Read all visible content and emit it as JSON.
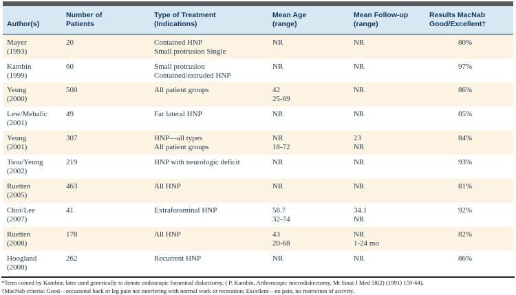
{
  "colors": {
    "top_bar": "#58595b",
    "header_bg": "#d8e8f2",
    "header_rule": "#7d9cb2",
    "stripe_bg": "#fdf3e2",
    "header_text": "#11365c",
    "body_text": "#263c50"
  },
  "table": {
    "headers": [
      "Author(s)",
      "Number of\nPatients",
      "Type of Treatment\n(Indications)",
      "Mean Age\n(range)",
      "Mean Follow-up\n(range)",
      "Results MacNab\nGood/Excellent†"
    ],
    "rows": [
      [
        "Mayer\n(1993)",
        "20",
        "Contained HNP\nSmall protrusion Single",
        "NR",
        "NR",
        "80%"
      ],
      [
        "Kambin\n(1999)",
        "60",
        "Small protrusion\nContained/extruded HNP",
        "NR",
        "NR",
        "97%"
      ],
      [
        "Yeung\n(2000)",
        "500",
        "All patient groups",
        "42\n25-69",
        "NR",
        "86%"
      ],
      [
        "Lew/Mehalic\n(2001)",
        "49",
        "Far lateral HNP",
        "NR",
        "NR",
        "85%"
      ],
      [
        "Yeung\n(2001)",
        "307",
        "HNP—all types\nAll patient groups",
        "NR\n18-72",
        "23\nNR",
        "84%"
      ],
      [
        "Tsou/Yeung\n(2002)",
        "219",
        "HNP with neurologic deficit",
        "NR",
        "NR",
        "93%"
      ],
      [
        "Ruetten\n(2005)",
        "463",
        "All HNP",
        "NR",
        "NR",
        "81%"
      ],
      [
        "Choi/Lee\n(2007)",
        "41",
        "Extraforaminal HNP",
        "58.7\n32-74",
        "34.1\nNR",
        "92%"
      ],
      [
        "Ruetten\n(2008)",
        "178",
        "All HNP",
        "43\n20-68",
        "NR\n1-24 mo",
        "82%"
      ],
      [
        "Hoogland\n(2008)",
        "262",
        "Recurrent HNP",
        "NR",
        "NR",
        "86%"
      ]
    ]
  },
  "footnotes": [
    "*Term coined by Kambin; later used generically to denote endoscopic foraminal diskectomy. ( P. Kambin, Arthroscopic microdiskectomy. Mt Sinai J Med 58(2) (1991) 159-64).",
    "†MacNab criteria: Good—occasional back or leg pain not interfering with normal work or recreation; Excellent—no pain, no restriction of activity."
  ]
}
